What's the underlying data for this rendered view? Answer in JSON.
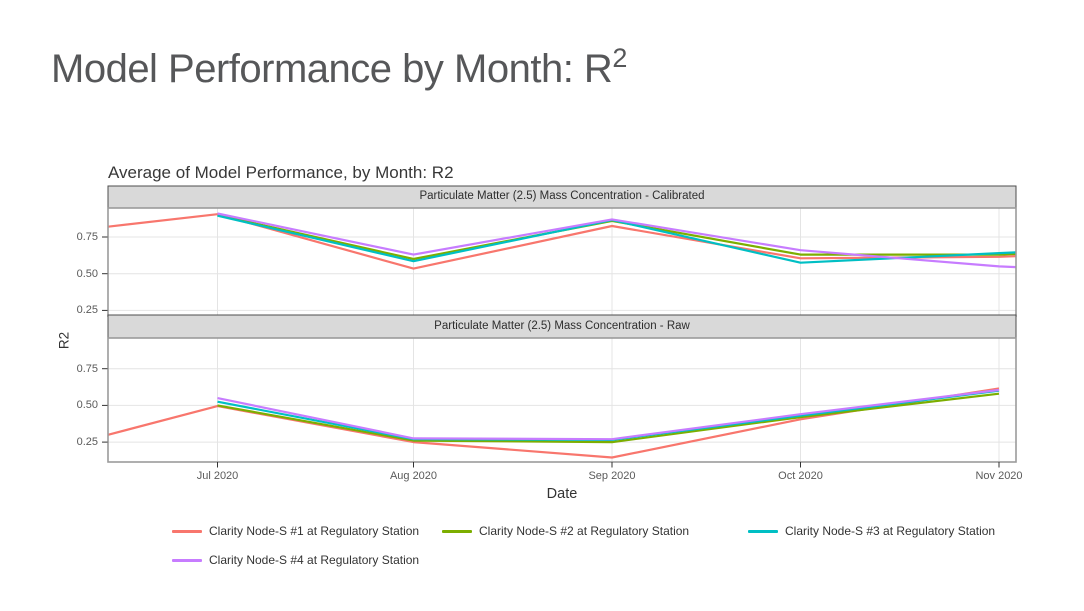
{
  "header": {
    "title_main": "Model Performance by Month: R",
    "title_sup": "2"
  },
  "chart_data": {
    "type": "line",
    "title": "Average of Model Performance, by Month: R2",
    "xlabel": "Date",
    "ylabel": "R2",
    "x": [
      "Jul 2020",
      "Aug 2020",
      "Sep 2020",
      "Oct 2020",
      "Nov 2020"
    ],
    "y_tick_labels": [
      "0.75",
      "0.50",
      "0.25"
    ],
    "y_tick_values": [
      0.75,
      0.5,
      0.25
    ],
    "grid": true,
    "legend_position": "bottom",
    "facets": [
      {
        "label": "Particulate Matter (2.5) Mass Concentration - Calibrated",
        "series": [
          {
            "name": "Clarity Node-S #1 at Regulatory Station",
            "color": "#F8766D",
            "edge_left": 0.82,
            "values": [
              0.905,
              0.535,
              0.825,
              0.605,
              0.615
            ],
            "edge_right": 0.62
          },
          {
            "name": "Clarity Node-S #2 at Regulatory Station",
            "color": "#7CAE00",
            "edge_left": null,
            "values": [
              0.9,
              0.6,
              0.86,
              0.63,
              0.63
            ],
            "edge_right": 0.635
          },
          {
            "name": "Clarity Node-S #3 at Regulatory Station",
            "color": "#00BFC4",
            "edge_left": null,
            "values": [
              0.895,
              0.585,
              0.865,
              0.575,
              0.64
            ],
            "edge_right": 0.645
          },
          {
            "name": "Clarity Node-S #4 at Regulatory Station",
            "color": "#C77CFF",
            "edge_left": null,
            "values": [
              0.91,
              0.63,
              0.87,
              0.66,
              0.55
            ],
            "edge_right": 0.545
          }
        ]
      },
      {
        "label": "Particulate Matter (2.5) Mass Concentration - Raw",
        "series": [
          {
            "name": "Clarity Node-S #1 at Regulatory Station",
            "color": "#F8766D",
            "edge_left": 0.3,
            "values": [
              0.495,
              0.25,
              0.145,
              0.405,
              0.615
            ],
            "edge_right": null
          },
          {
            "name": "Clarity Node-S #2 at Regulatory Station",
            "color": "#7CAE00",
            "edge_left": null,
            "values": [
              0.5,
              0.26,
              0.25,
              0.42,
              0.58
            ],
            "edge_right": null
          },
          {
            "name": "Clarity Node-S #3 at Regulatory Station",
            "color": "#00BFC4",
            "edge_left": null,
            "values": [
              0.525,
              0.27,
              0.265,
              0.43,
              0.6
            ],
            "edge_right": null
          },
          {
            "name": "Clarity Node-S #4 at Regulatory Station",
            "color": "#C77CFF",
            "edge_left": null,
            "values": [
              0.55,
              0.275,
              0.27,
              0.44,
              0.605
            ],
            "edge_right": null
          }
        ]
      }
    ]
  },
  "legend": {
    "entries": [
      {
        "label": "Clarity Node-S #1 at Regulatory Station",
        "color": "#F8766D"
      },
      {
        "label": "Clarity Node-S #2 at Regulatory Station",
        "color": "#7CAE00"
      },
      {
        "label": "Clarity Node-S #3 at Regulatory Station",
        "color": "#00BFC4"
      },
      {
        "label": "Clarity Node-S #4 at Regulatory Station",
        "color": "#C77CFF"
      }
    ]
  },
  "style_colors": {
    "strip_fill": "#d9d9d9",
    "strip_border": "#4d4d4d",
    "panel_border": "#9b9b9b",
    "gridline": "#e4e4e4",
    "tick": "#333333"
  }
}
